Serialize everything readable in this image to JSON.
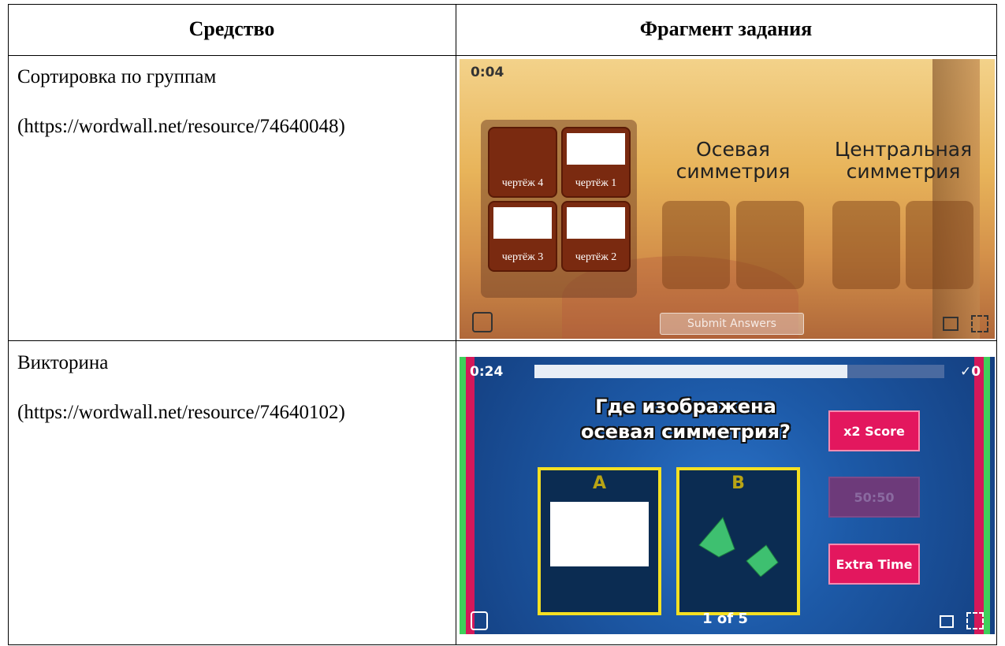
{
  "table": {
    "header": [
      "Средство",
      "Фрагмент задания"
    ],
    "rows": [
      {
        "tool": "Сортировка по группам",
        "link": "(https://wordwall.net/resource/74640048)",
        "fragment": {
          "timer": "0:04",
          "cards": [
            "чертёж 4",
            "чертёж 1",
            "чертёж 3",
            "чертёж 2"
          ],
          "groups": [
            [
              "Осевая",
              "симметрия"
            ],
            [
              "Центральная",
              "симметрия"
            ]
          ],
          "submit": "Submit Answers"
        }
      },
      {
        "tool": "Викторина",
        "link": "(https://wordwall.net/resource/74640102)",
        "fragment": {
          "timer": "0:24",
          "score": "✓0",
          "question": [
            "Где изображена",
            "осевая симметрия?"
          ],
          "options": [
            "A",
            "B"
          ],
          "powerups": [
            "x2 Score",
            "50:50",
            "Extra Time"
          ],
          "counter": "1 of 5"
        }
      }
    ]
  }
}
